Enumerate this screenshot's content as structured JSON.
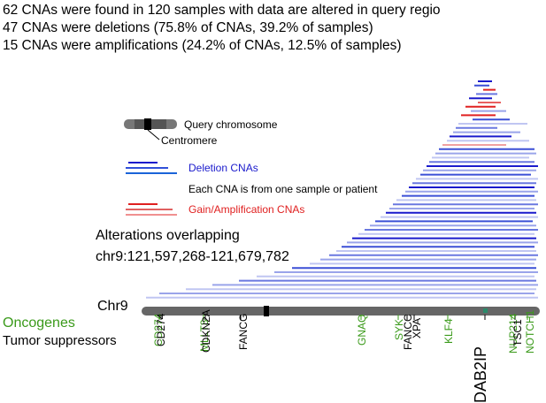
{
  "summary": {
    "line1": "62 CNAs were found in 120 samples with data are altered in query regio",
    "line2": "47 CNAs were deletions (75.8% of CNAs, 39.2% of samples)",
    "line3": "15 CNAs were amplifications (24.2% of CNAs, 12.5% of samples)"
  },
  "legend": {
    "query_chromosome": "Query chromosome",
    "centromere": "Centromere",
    "deletion": "Deletion CNAs",
    "each_cna": "Each CNA is from one sample or patient",
    "gain": "Gain/Amplification CNAs"
  },
  "alterations": {
    "line1": "Alterations overlapping",
    "line2": "chr9:121,597,268-121,679,782"
  },
  "chromosome_label": "Chr9",
  "oncogenes_label": "Oncogenes",
  "tumor_suppressors_label": "Tumor suppressors",
  "colors": {
    "deletion": "#1a1acc",
    "gain": "#e02020",
    "oncogene": "#3a9a1a",
    "suppressor": "#000000",
    "chromosome": "#555555"
  },
  "genes": [
    {
      "name": "CD274",
      "type": "oncogene"
    },
    {
      "name": "CD274",
      "type": "suppressor"
    },
    {
      "name": "MLLT3",
      "type": "oncogene"
    },
    {
      "name": "CDKN2A",
      "type": "suppressor"
    },
    {
      "name": "FANCG",
      "type": "suppressor"
    },
    {
      "name": "GNAQ",
      "type": "oncogene"
    },
    {
      "name": "SYK",
      "type": "oncogene"
    },
    {
      "name": "FANCC",
      "type": "suppressor"
    },
    {
      "name": "XPA",
      "type": "suppressor"
    },
    {
      "name": "KLF4",
      "type": "oncogene"
    },
    {
      "name": "DAB2IP",
      "type": "suppressor"
    },
    {
      "name": "NUP214",
      "type": "oncogene"
    },
    {
      "name": "TSC1",
      "type": "suppressor"
    },
    {
      "name": "NOTCH1",
      "type": "oncogene"
    }
  ]
}
